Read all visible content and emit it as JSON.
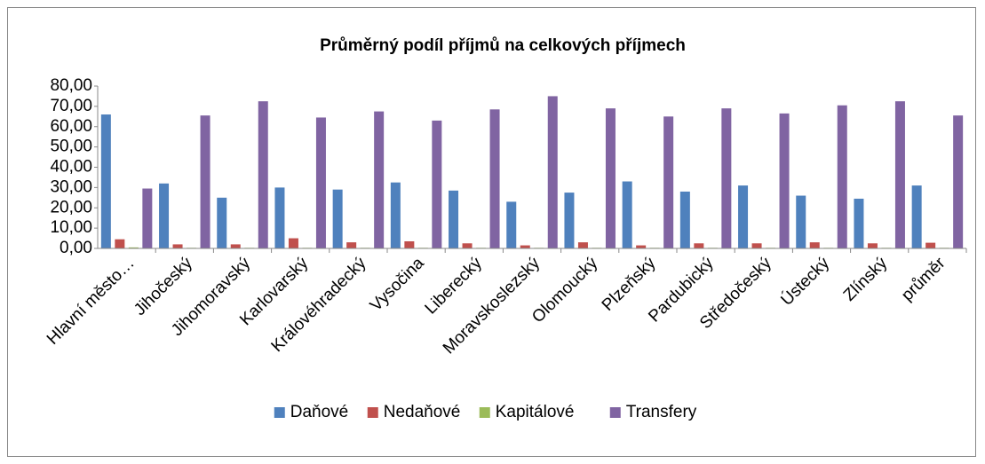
{
  "chart_data": {
    "type": "bar",
    "title": "Průměrný podíl příjmů na celkových příjmech",
    "categories": [
      "Hlavní město…",
      "Jihočeský",
      "Jihomoravský",
      "Karlovarský",
      "Královéhradecký",
      "Vysočina",
      "Liberecký",
      "Moravskoslezský",
      "Olomoucký",
      "Plzeňský",
      "Pardubický",
      "Středočeský",
      "Ústecký",
      "Zlínský",
      "průměr"
    ],
    "series": [
      {
        "name": "Daňové",
        "color": "#4f81bd",
        "values": [
          66,
          32,
          25,
          30,
          29,
          32.5,
          28.5,
          23,
          27.5,
          33,
          28,
          31,
          26,
          24.5,
          31
        ]
      },
      {
        "name": "Nedaňové",
        "color": "#c0504d",
        "values": [
          4.5,
          2,
          2,
          5,
          3,
          3.5,
          2.5,
          1.5,
          3,
          1.5,
          2.5,
          2.5,
          3,
          2.5,
          2.8
        ]
      },
      {
        "name": "Kapitálové",
        "color": "#9bbb59",
        "values": [
          0.5,
          0.3,
          0.3,
          0.3,
          0.3,
          0.3,
          0.3,
          0.3,
          0.3,
          0.3,
          0.3,
          0.3,
          0.3,
          0.3,
          0.3
        ]
      },
      {
        "name": "Transfery",
        "color": "#8064a2",
        "values": [
          29.5,
          65.5,
          72.5,
          64.5,
          67.5,
          63,
          68.5,
          75,
          69,
          65,
          69,
          66.5,
          70.5,
          72.5,
          65.5
        ]
      }
    ],
    "ylim": [
      0,
      80
    ],
    "yticks": [
      {
        "value": 0,
        "label": "0,00"
      },
      {
        "value": 10,
        "label": "10,00"
      },
      {
        "value": 20,
        "label": "20,00"
      },
      {
        "value": 30,
        "label": "30,00"
      },
      {
        "value": 40,
        "label": "40,00"
      },
      {
        "value": 50,
        "label": "50,00"
      },
      {
        "value": 60,
        "label": "60,00"
      },
      {
        "value": 70,
        "label": "70,00"
      },
      {
        "value": 80,
        "label": "80,00"
      }
    ],
    "grid": false,
    "legend": "bottom"
  }
}
